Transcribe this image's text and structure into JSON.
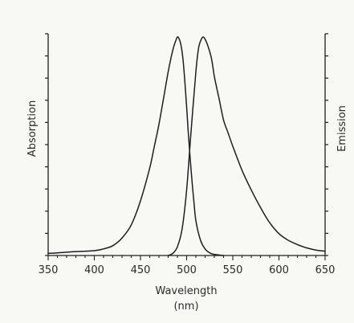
{
  "chart_data": {
    "type": "line",
    "xlabel": "Wavelength",
    "xlabel_unit": "(nm)",
    "ylabel_left": "Absorption",
    "ylabel_right": "Emission",
    "xlim": [
      350,
      650
    ],
    "ylim": [
      0,
      1
    ],
    "x_ticks": [
      350,
      400,
      450,
      500,
      550,
      600,
      650
    ],
    "y_tick_count": 10,
    "grid": false,
    "colors": {
      "background": "#f8f8f4",
      "line": "#1e1e1e",
      "axis": "#1e1e1e"
    },
    "series": [
      {
        "x": [
          350,
          360,
          370,
          380,
          390,
          400,
          410,
          420,
          430,
          440,
          450,
          460,
          465,
          470,
          475,
          480,
          485,
          488,
          490,
          492,
          494,
          496,
          498,
          500,
          502,
          505,
          508,
          510,
          515,
          520,
          525,
          530,
          540
        ],
        "y": [
          0.01,
          0.012,
          0.015,
          0.018,
          0.02,
          0.022,
          0.03,
          0.045,
          0.08,
          0.14,
          0.25,
          0.4,
          0.5,
          0.6,
          0.72,
          0.84,
          0.94,
          0.98,
          1.0,
          0.99,
          0.96,
          0.9,
          0.8,
          0.68,
          0.55,
          0.38,
          0.24,
          0.16,
          0.07,
          0.03,
          0.012,
          0.005,
          0.0
        ]
      },
      {
        "x": [
          480,
          485,
          490,
          495,
          500,
          505,
          510,
          513,
          516,
          518,
          520,
          523,
          527,
          530,
          535,
          540,
          545,
          550,
          560,
          570,
          580,
          590,
          600,
          610,
          620,
          630,
          640,
          650
        ],
        "y": [
          0.0,
          0.01,
          0.04,
          0.12,
          0.3,
          0.58,
          0.84,
          0.95,
          0.99,
          1.0,
          0.99,
          0.96,
          0.9,
          0.82,
          0.72,
          0.62,
          0.56,
          0.5,
          0.39,
          0.3,
          0.22,
          0.15,
          0.1,
          0.07,
          0.05,
          0.035,
          0.025,
          0.02
        ]
      }
    ]
  }
}
